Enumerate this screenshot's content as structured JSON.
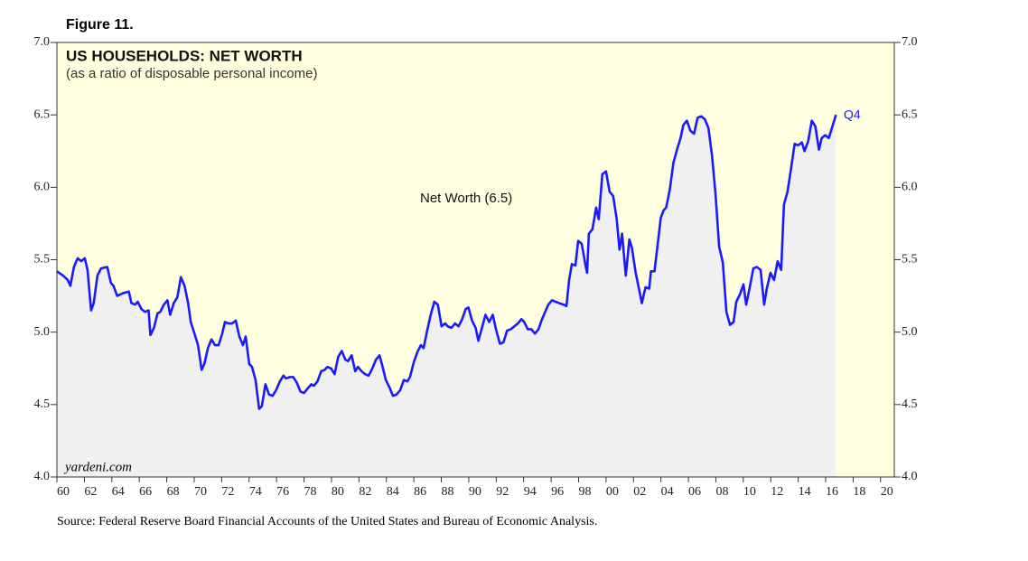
{
  "figure_label": "Figure 11.",
  "source": "Source: Federal Reserve Board Financial Accounts of the United States and Bureau of Economic Analysis.",
  "watermark": "yardeni.com",
  "chart_data": {
    "type": "line",
    "title": "US HOUSEHOLDS: NET WORTH",
    "subtitle": "(as a ratio of disposable personal income)",
    "annotations": [
      "Net Worth (6.5)",
      "Q4"
    ],
    "x": [
      1960.0,
      1960.46,
      1960.79,
      1960.98,
      1961.24,
      1961.51,
      1961.77,
      1962.03,
      1962.23,
      1962.49,
      1962.68,
      1962.95,
      1963.21,
      1963.67,
      1963.93,
      1964.12,
      1964.39,
      1964.84,
      1965.24,
      1965.43,
      1965.7,
      1965.89,
      1966.15,
      1966.42,
      1966.68,
      1966.81,
      1967.07,
      1967.33,
      1967.53,
      1967.79,
      1968.05,
      1968.25,
      1968.51,
      1968.77,
      1969.03,
      1969.3,
      1969.56,
      1969.75,
      1970.02,
      1970.28,
      1970.54,
      1970.74,
      1971.0,
      1971.26,
      1971.52,
      1971.78,
      1972.04,
      1972.24,
      1972.5,
      1972.76,
      1973.03,
      1973.29,
      1973.55,
      1973.75,
      1974.01,
      1974.21,
      1974.47,
      1974.73,
      1974.93,
      1975.19,
      1975.45,
      1975.71,
      1975.97,
      1976.24,
      1976.5,
      1976.69,
      1976.96,
      1977.22,
      1977.48,
      1977.74,
      1978.0,
      1978.26,
      1978.53,
      1978.72,
      1978.98,
      1979.25,
      1979.51,
      1979.7,
      1979.97,
      1980.23,
      1980.49,
      1980.75,
      1981.01,
      1981.21,
      1981.47,
      1981.73,
      1981.93,
      1982.19,
      1982.45,
      1982.71,
      1982.98,
      1983.24,
      1983.5,
      1983.7,
      1983.96,
      1984.22,
      1984.48,
      1984.74,
      1985.01,
      1985.27,
      1985.53,
      1985.72,
      1985.99,
      1986.25,
      1986.51,
      1986.71,
      1986.97,
      1987.23,
      1987.49,
      1987.75,
      1988.02,
      1988.28,
      1988.47,
      1988.74,
      1989.0,
      1989.26,
      1989.52,
      1989.78,
      1989.98,
      1990.24,
      1990.5,
      1990.7,
      1990.96,
      1991.22,
      1991.49,
      1991.75,
      1992.01,
      1992.27,
      1992.53,
      1992.79,
      1993.06,
      1993.32,
      1993.58,
      1993.84,
      1994.04,
      1994.3,
      1994.56,
      1994.82,
      1995.08,
      1995.34,
      1995.61,
      1995.8,
      1996.06,
      1996.33,
      1996.59,
      1996.92,
      1997.12,
      1997.31,
      1997.51,
      1997.77,
      1997.97,
      1998.23,
      1998.49,
      1998.62,
      1998.75,
      1999.01,
      1999.28,
      1999.47,
      1999.73,
      2000.0,
      2000.26,
      2000.52,
      2000.78,
      2000.98,
      2001.17,
      2001.44,
      2001.7,
      2001.89,
      2002.16,
      2002.42,
      2002.61,
      2002.75,
      2002.88,
      2003.14,
      2003.27,
      2003.53,
      2003.73,
      2003.99,
      2004.19,
      2004.38,
      2004.64,
      2004.91,
      2005.17,
      2005.43,
      2005.63,
      2005.89,
      2006.15,
      2006.41,
      2006.67,
      2006.94,
      2007.2,
      2007.46,
      2007.72,
      2007.98,
      2008.24,
      2008.51,
      2008.77,
      2009.03,
      2009.29,
      2009.49,
      2009.75,
      2010.01,
      2010.21,
      2010.47,
      2010.73,
      2010.99,
      2011.26,
      2011.52,
      2011.71,
      2011.98,
      2012.24,
      2012.5,
      2012.76,
      2012.96,
      2013.22,
      2013.48,
      2013.74,
      2014.0,
      2014.27,
      2014.46,
      2014.73,
      2014.99,
      2015.25,
      2015.51,
      2015.71,
      2015.97,
      2016.23,
      2016.49,
      2016.75
    ],
    "series": [
      {
        "name": "Net Worth",
        "color": "#1a1aff",
        "area_color": "#f0f0f0",
        "values": [
          5.42,
          5.39,
          5.36,
          5.32,
          5.45,
          5.51,
          5.49,
          5.51,
          5.43,
          5.15,
          5.2,
          5.39,
          5.44,
          5.45,
          5.34,
          5.32,
          5.25,
          5.27,
          5.28,
          5.2,
          5.19,
          5.21,
          5.16,
          5.14,
          5.15,
          4.98,
          5.03,
          5.13,
          5.14,
          5.19,
          5.22,
          5.12,
          5.2,
          5.24,
          5.38,
          5.32,
          5.2,
          5.07,
          4.99,
          4.91,
          4.74,
          4.78,
          4.89,
          4.95,
          4.91,
          4.91,
          4.99,
          5.07,
          5.06,
          5.06,
          5.08,
          4.97,
          4.91,
          4.97,
          4.78,
          4.76,
          4.67,
          4.47,
          4.49,
          4.64,
          4.57,
          4.56,
          4.6,
          4.66,
          4.7,
          4.68,
          4.69,
          4.69,
          4.65,
          4.59,
          4.58,
          4.61,
          4.64,
          4.63,
          4.66,
          4.73,
          4.74,
          4.76,
          4.75,
          4.71,
          4.83,
          4.87,
          4.81,
          4.8,
          4.84,
          4.73,
          4.76,
          4.73,
          4.71,
          4.7,
          4.75,
          4.81,
          4.84,
          4.77,
          4.67,
          4.62,
          4.56,
          4.57,
          4.6,
          4.67,
          4.66,
          4.69,
          4.79,
          4.86,
          4.91,
          4.89,
          5.01,
          5.12,
          5.21,
          5.19,
          5.04,
          5.06,
          5.04,
          5.03,
          5.06,
          5.04,
          5.09,
          5.16,
          5.17,
          5.08,
          5.03,
          4.94,
          5.03,
          5.12,
          5.07,
          5.12,
          5.01,
          4.92,
          4.93,
          5.01,
          5.02,
          5.04,
          5.06,
          5.09,
          5.07,
          5.02,
          5.02,
          4.99,
          5.02,
          5.09,
          5.15,
          5.19,
          5.22,
          5.21,
          5.2,
          5.19,
          5.18,
          5.36,
          5.47,
          5.46,
          5.63,
          5.61,
          5.47,
          5.41,
          5.68,
          5.71,
          5.86,
          5.78,
          6.09,
          6.11,
          5.97,
          5.94,
          5.78,
          5.57,
          5.68,
          5.39,
          5.64,
          5.58,
          5.41,
          5.29,
          5.2,
          5.26,
          5.31,
          5.3,
          5.42,
          5.42,
          5.58,
          5.79,
          5.84,
          5.86,
          5.98,
          6.17,
          6.26,
          6.34,
          6.43,
          6.46,
          6.39,
          6.37,
          6.48,
          6.49,
          6.47,
          6.41,
          6.22,
          5.95,
          5.59,
          5.48,
          5.14,
          5.05,
          5.07,
          5.21,
          5.26,
          5.33,
          5.19,
          5.31,
          5.44,
          5.45,
          5.43,
          5.19,
          5.3,
          5.41,
          5.36,
          5.49,
          5.43,
          5.88,
          5.97,
          6.13,
          6.3,
          6.29,
          6.31,
          6.25,
          6.32,
          6.46,
          6.42,
          6.26,
          6.34,
          6.36,
          6.34,
          6.42,
          6.5
        ]
      }
    ],
    "xlim": [
      1960,
      2021
    ],
    "xticks": [
      {
        "value": 1960,
        "label": "60"
      },
      {
        "value": 1962,
        "label": "62"
      },
      {
        "value": 1964,
        "label": "64"
      },
      {
        "value": 1966,
        "label": "66"
      },
      {
        "value": 1968,
        "label": "68"
      },
      {
        "value": 1970,
        "label": "70"
      },
      {
        "value": 1972,
        "label": "72"
      },
      {
        "value": 1974,
        "label": "74"
      },
      {
        "value": 1976,
        "label": "76"
      },
      {
        "value": 1978,
        "label": "78"
      },
      {
        "value": 1980,
        "label": "80"
      },
      {
        "value": 1982,
        "label": "82"
      },
      {
        "value": 1984,
        "label": "84"
      },
      {
        "value": 1986,
        "label": "86"
      },
      {
        "value": 1988,
        "label": "88"
      },
      {
        "value": 1990,
        "label": "90"
      },
      {
        "value": 1992,
        "label": "92"
      },
      {
        "value": 1994,
        "label": "94"
      },
      {
        "value": 1996,
        "label": "96"
      },
      {
        "value": 1998,
        "label": "98"
      },
      {
        "value": 2000,
        "label": "00"
      },
      {
        "value": 2002,
        "label": "02"
      },
      {
        "value": 2004,
        "label": "04"
      },
      {
        "value": 2006,
        "label": "06"
      },
      {
        "value": 2008,
        "label": "08"
      },
      {
        "value": 2010,
        "label": "10"
      },
      {
        "value": 2012,
        "label": "12"
      },
      {
        "value": 2014,
        "label": "14"
      },
      {
        "value": 2016,
        "label": "16"
      },
      {
        "value": 2018,
        "label": "18"
      },
      {
        "value": 2020,
        "label": "20"
      }
    ],
    "ylim": [
      4,
      7
    ],
    "yticks": [
      {
        "value": 4,
        "label": "4.0"
      },
      4.5,
      {
        "value": 5,
        "label": "5.0"
      },
      5.5,
      {
        "value": 6,
        "label": "6.0"
      },
      6.5,
      {
        "value": 7,
        "label": "7.0"
      }
    ]
  }
}
